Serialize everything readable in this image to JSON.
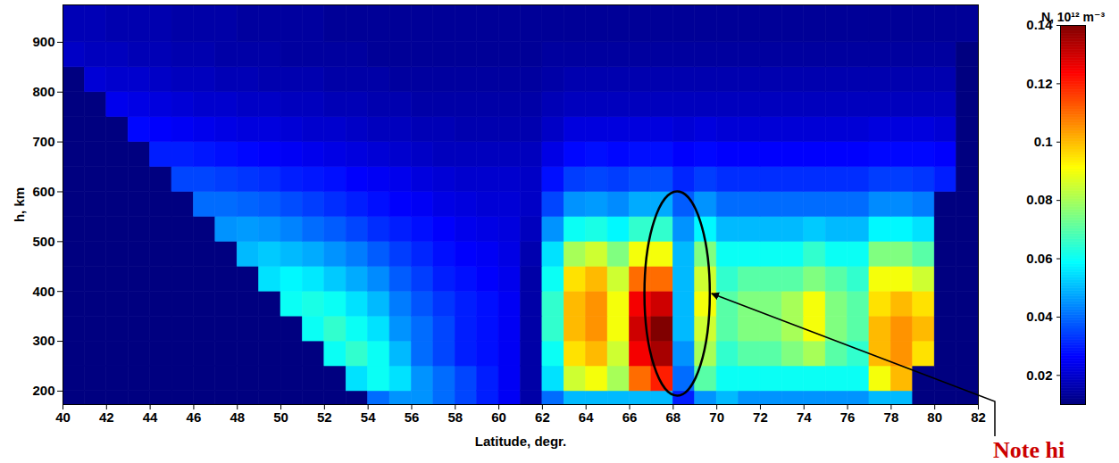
{
  "chart_data": {
    "type": "heatmap",
    "xlabel": "Latitude, degr.",
    "ylabel": "h, km",
    "xlim": [
      40,
      82
    ],
    "xticks": [
      40,
      42,
      44,
      46,
      48,
      50,
      52,
      54,
      56,
      58,
      60,
      62,
      64,
      66,
      68,
      70,
      72,
      74,
      76,
      78,
      80,
      82
    ],
    "ylim": [
      173,
      975
    ],
    "yticks": [
      200,
      300,
      400,
      500,
      600,
      700,
      800,
      900
    ],
    "x_edges": [
      40,
      41,
      42,
      43,
      44,
      45,
      46,
      47,
      48,
      49,
      50,
      51,
      52,
      53,
      54,
      55,
      56,
      57,
      58,
      59,
      60,
      61,
      62,
      63,
      64,
      65,
      66,
      67,
      68,
      69,
      70,
      71,
      72,
      73,
      74,
      75,
      76,
      77,
      78,
      79,
      80,
      81,
      82
    ],
    "y_edges": [
      173,
      200,
      250,
      300,
      350,
      400,
      450,
      500,
      550,
      600,
      650,
      700,
      750,
      800,
      850,
      900,
      975
    ],
    "cells": [
      [
        0.01,
        0.01,
        0.01,
        0.01,
        0.01,
        0.01,
        0.01,
        0.01,
        0.01,
        0.01,
        0.01,
        0.01,
        0.01,
        0.01,
        0.04,
        0.045,
        0.045,
        0.04,
        0.035,
        0.03,
        0.025,
        0.015,
        0.04,
        0.05,
        0.05,
        0.05,
        0.05,
        0.05,
        0.03,
        0.045,
        0.05,
        0.045,
        0.045,
        0.045,
        0.045,
        0.045,
        0.045,
        0.05,
        0.05,
        0.01,
        0.01,
        0.01
      ],
      [
        0.01,
        0.01,
        0.01,
        0.01,
        0.01,
        0.01,
        0.01,
        0.01,
        0.01,
        0.01,
        0.01,
        0.01,
        0.01,
        0.055,
        0.06,
        0.055,
        0.045,
        0.04,
        0.035,
        0.03,
        0.025,
        0.015,
        0.055,
        0.085,
        0.09,
        0.08,
        0.11,
        0.12,
        0.04,
        0.07,
        0.06,
        0.06,
        0.06,
        0.06,
        0.06,
        0.06,
        0.06,
        0.09,
        0.1,
        0.01,
        0.01,
        0.01
      ],
      [
        0.01,
        0.01,
        0.01,
        0.01,
        0.01,
        0.01,
        0.01,
        0.01,
        0.01,
        0.01,
        0.01,
        0.01,
        0.06,
        0.065,
        0.06,
        0.05,
        0.04,
        0.035,
        0.03,
        0.028,
        0.025,
        0.015,
        0.06,
        0.095,
        0.1,
        0.085,
        0.125,
        0.135,
        0.045,
        0.08,
        0.065,
        0.07,
        0.07,
        0.075,
        0.08,
        0.07,
        0.065,
        0.1,
        0.105,
        0.095,
        0.01,
        0.01
      ],
      [
        0.01,
        0.01,
        0.01,
        0.01,
        0.01,
        0.01,
        0.01,
        0.01,
        0.01,
        0.01,
        0.01,
        0.06,
        0.065,
        0.06,
        0.055,
        0.045,
        0.04,
        0.035,
        0.03,
        0.028,
        0.025,
        0.015,
        0.065,
        0.1,
        0.105,
        0.09,
        0.13,
        0.14,
        0.05,
        0.085,
        0.07,
        0.075,
        0.075,
        0.08,
        0.09,
        0.075,
        0.07,
        0.1,
        0.105,
        0.1,
        0.01,
        0.01
      ],
      [
        0.01,
        0.01,
        0.01,
        0.01,
        0.01,
        0.01,
        0.01,
        0.01,
        0.01,
        0.01,
        0.06,
        0.062,
        0.06,
        0.055,
        0.05,
        0.042,
        0.037,
        0.033,
        0.03,
        0.028,
        0.025,
        0.015,
        0.065,
        0.1,
        0.105,
        0.09,
        0.125,
        0.13,
        0.05,
        0.09,
        0.07,
        0.075,
        0.075,
        0.08,
        0.09,
        0.075,
        0.07,
        0.095,
        0.1,
        0.095,
        0.01,
        0.01
      ],
      [
        0.01,
        0.01,
        0.01,
        0.01,
        0.01,
        0.01,
        0.01,
        0.01,
        0.01,
        0.055,
        0.058,
        0.056,
        0.052,
        0.048,
        0.044,
        0.038,
        0.034,
        0.03,
        0.028,
        0.026,
        0.024,
        0.015,
        0.06,
        0.095,
        0.1,
        0.085,
        0.11,
        0.11,
        0.05,
        0.085,
        0.065,
        0.07,
        0.07,
        0.07,
        0.075,
        0.07,
        0.065,
        0.09,
        0.09,
        0.085,
        0.01,
        0.01
      ],
      [
        0.01,
        0.01,
        0.01,
        0.01,
        0.01,
        0.01,
        0.01,
        0.01,
        0.05,
        0.052,
        0.05,
        0.048,
        0.045,
        0.042,
        0.038,
        0.034,
        0.031,
        0.028,
        0.026,
        0.025,
        0.023,
        0.016,
        0.055,
        0.08,
        0.085,
        0.075,
        0.09,
        0.09,
        0.05,
        0.075,
        0.06,
        0.06,
        0.06,
        0.06,
        0.065,
        0.06,
        0.06,
        0.075,
        0.075,
        0.07,
        0.01,
        0.01
      ],
      [
        0.01,
        0.01,
        0.01,
        0.01,
        0.01,
        0.01,
        0.01,
        0.045,
        0.046,
        0.045,
        0.043,
        0.04,
        0.038,
        0.035,
        0.032,
        0.03,
        0.028,
        0.026,
        0.024,
        0.023,
        0.022,
        0.018,
        0.045,
        0.06,
        0.062,
        0.058,
        0.065,
        0.065,
        0.045,
        0.058,
        0.05,
        0.05,
        0.05,
        0.05,
        0.052,
        0.05,
        0.05,
        0.058,
        0.058,
        0.055,
        0.01,
        0.01
      ],
      [
        0.01,
        0.01,
        0.01,
        0.01,
        0.01,
        0.01,
        0.04,
        0.04,
        0.039,
        0.038,
        0.036,
        0.034,
        0.032,
        0.03,
        0.028,
        0.026,
        0.025,
        0.023,
        0.022,
        0.021,
        0.021,
        0.019,
        0.035,
        0.045,
        0.046,
        0.044,
        0.048,
        0.048,
        0.038,
        0.045,
        0.04,
        0.04,
        0.04,
        0.04,
        0.04,
        0.04,
        0.04,
        0.044,
        0.044,
        0.042,
        0.01,
        0.01
      ],
      [
        0.01,
        0.01,
        0.01,
        0.01,
        0.01,
        0.035,
        0.035,
        0.034,
        0.033,
        0.032,
        0.03,
        0.029,
        0.028,
        0.026,
        0.025,
        0.024,
        0.022,
        0.021,
        0.02,
        0.02,
        0.02,
        0.019,
        0.028,
        0.034,
        0.035,
        0.034,
        0.036,
        0.036,
        0.031,
        0.034,
        0.032,
        0.032,
        0.032,
        0.032,
        0.032,
        0.032,
        0.032,
        0.034,
        0.034,
        0.033,
        0.03,
        0.01
      ],
      [
        0.01,
        0.01,
        0.01,
        0.01,
        0.03,
        0.03,
        0.029,
        0.028,
        0.027,
        0.026,
        0.025,
        0.024,
        0.023,
        0.022,
        0.021,
        0.02,
        0.019,
        0.018,
        0.018,
        0.018,
        0.018,
        0.018,
        0.023,
        0.027,
        0.028,
        0.027,
        0.028,
        0.028,
        0.026,
        0.027,
        0.026,
        0.026,
        0.026,
        0.026,
        0.026,
        0.026,
        0.026,
        0.027,
        0.027,
        0.027,
        0.026,
        0.01
      ],
      [
        0.01,
        0.01,
        0.01,
        0.027,
        0.026,
        0.025,
        0.024,
        0.023,
        0.022,
        0.022,
        0.021,
        0.02,
        0.02,
        0.019,
        0.018,
        0.018,
        0.017,
        0.017,
        0.016,
        0.016,
        0.016,
        0.016,
        0.019,
        0.022,
        0.022,
        0.022,
        0.022,
        0.022,
        0.021,
        0.022,
        0.021,
        0.021,
        0.021,
        0.021,
        0.021,
        0.021,
        0.021,
        0.022,
        0.022,
        0.022,
        0.021,
        0.01
      ],
      [
        0.01,
        0.01,
        0.024,
        0.023,
        0.022,
        0.021,
        0.02,
        0.02,
        0.019,
        0.019,
        0.018,
        0.018,
        0.017,
        0.017,
        0.016,
        0.016,
        0.015,
        0.015,
        0.015,
        0.015,
        0.015,
        0.015,
        0.017,
        0.018,
        0.018,
        0.018,
        0.018,
        0.018,
        0.018,
        0.018,
        0.018,
        0.018,
        0.018,
        0.018,
        0.018,
        0.018,
        0.018,
        0.018,
        0.018,
        0.018,
        0.018,
        0.01
      ],
      [
        0.01,
        0.021,
        0.02,
        0.02,
        0.019,
        0.018,
        0.018,
        0.017,
        0.017,
        0.016,
        0.016,
        0.016,
        0.015,
        0.015,
        0.015,
        0.014,
        0.014,
        0.014,
        0.014,
        0.014,
        0.014,
        0.014,
        0.015,
        0.016,
        0.016,
        0.016,
        0.016,
        0.016,
        0.016,
        0.016,
        0.016,
        0.016,
        0.016,
        0.016,
        0.016,
        0.016,
        0.016,
        0.016,
        0.016,
        0.016,
        0.016,
        0.01
      ],
      [
        0.019,
        0.018,
        0.018,
        0.017,
        0.017,
        0.016,
        0.016,
        0.015,
        0.015,
        0.015,
        0.014,
        0.014,
        0.014,
        0.014,
        0.013,
        0.013,
        0.013,
        0.013,
        0.013,
        0.013,
        0.013,
        0.013,
        0.014,
        0.014,
        0.014,
        0.014,
        0.014,
        0.014,
        0.014,
        0.014,
        0.014,
        0.014,
        0.014,
        0.014,
        0.014,
        0.014,
        0.014,
        0.014,
        0.014,
        0.014,
        0.014,
        0.01
      ],
      [
        0.017,
        0.017,
        0.016,
        0.016,
        0.016,
        0.015,
        0.015,
        0.015,
        0.014,
        0.014,
        0.014,
        0.014,
        0.013,
        0.013,
        0.013,
        0.013,
        0.013,
        0.013,
        0.013,
        0.013,
        0.013,
        0.013,
        0.013,
        0.013,
        0.013,
        0.013,
        0.013,
        0.013,
        0.013,
        0.013,
        0.013,
        0.013,
        0.013,
        0.013,
        0.013,
        0.013,
        0.013,
        0.013,
        0.013,
        0.013,
        0.013,
        0.013
      ]
    ],
    "colorbar": {
      "label": "N, 10¹² m⁻³",
      "range": [
        0.01,
        0.14
      ],
      "ticks": [
        0.02,
        0.04,
        0.06,
        0.08,
        0.1,
        0.12,
        0.14
      ]
    },
    "highlight": {
      "x": [
        66.7,
        69.7
      ],
      "y": [
        190,
        600
      ]
    },
    "annotations": [
      {
        "text": "Note hi",
        "color": "#cc0000"
      }
    ]
  }
}
